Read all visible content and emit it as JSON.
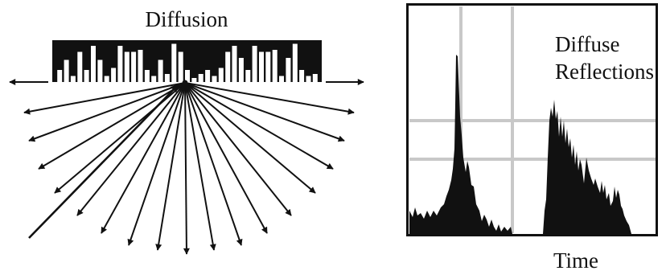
{
  "diffusion_panel": {
    "title": "Diffusion",
    "well_heights": [
      0.3,
      0.55,
      0.15,
      0.75,
      0.3,
      0.9,
      0.55,
      0.15,
      0.35,
      0.9,
      0.75,
      0.75,
      0.8,
      0.3,
      0.15,
      0.55,
      0.2,
      0.95,
      0.75,
      0.3,
      0.1,
      0.2,
      0.3,
      0.15,
      0.35,
      0.75,
      0.9,
      0.6,
      0.3,
      0.9,
      0.75,
      0.75,
      0.8,
      0.15,
      0.6,
      0.95,
      0.3,
      0.15,
      0.2
    ]
  },
  "reflection_panel": {
    "title_line1": "Diffuse",
    "title_line2": "Reflections",
    "xlabel": "Time"
  },
  "colors": {
    "ink": "#111111",
    "grid": "#c8c8c8",
    "background": "#ffffff"
  }
}
